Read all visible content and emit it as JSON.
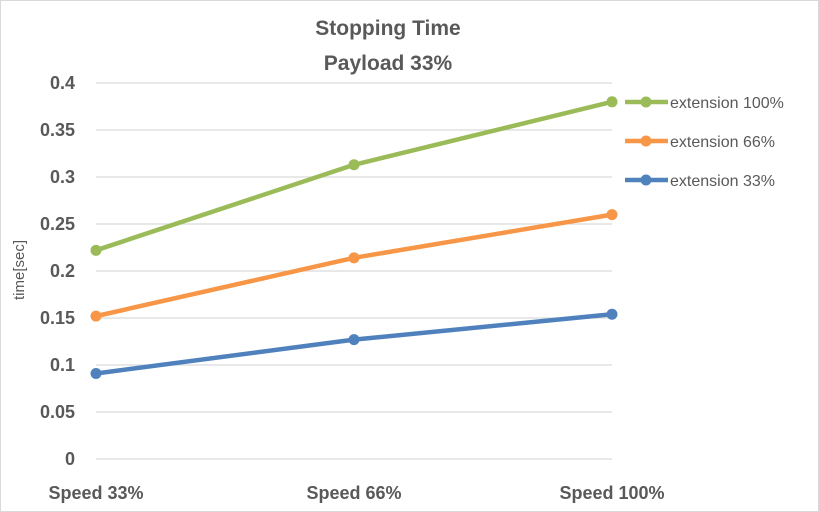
{
  "chart_data": {
    "type": "line",
    "title": "Stopping Time",
    "subtitle": "Payload 33%",
    "xlabel": "",
    "ylabel": "time[sec]",
    "categories": [
      "Speed 33%",
      "Speed 66%",
      "Speed 100%"
    ],
    "ylim": [
      0,
      0.4
    ],
    "yticks": [
      "0",
      "0.05",
      "0.1",
      "0.15",
      "0.2",
      "0.25",
      "0.3",
      "0.35",
      "0.4"
    ],
    "grid": true,
    "legend_position": "right",
    "series": [
      {
        "name": "extension 100%",
        "color": "#9bbb59",
        "values": [
          0.222,
          0.313,
          0.38
        ]
      },
      {
        "name": "extension 66%",
        "color": "#f79646",
        "values": [
          0.152,
          0.214,
          0.26
        ]
      },
      {
        "name": "extension 33%",
        "color": "#4f81bd",
        "values": [
          0.091,
          0.127,
          0.154
        ]
      }
    ]
  }
}
